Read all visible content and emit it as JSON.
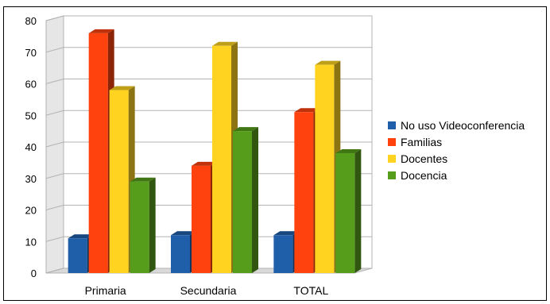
{
  "chart_data": {
    "type": "bar",
    "categories": [
      "Primaria",
      "Secundaria",
      "TOTAL"
    ],
    "series": [
      {
        "name": "No uso Videoconferencia",
        "color": "#1f5ea8",
        "values": [
          11,
          12,
          12
        ]
      },
      {
        "name": "Familias",
        "color": "#ff420e",
        "values": [
          76,
          34,
          51
        ]
      },
      {
        "name": "Docentes",
        "color": "#ffd320",
        "values": [
          58,
          72,
          66
        ]
      },
      {
        "name": "Docencia",
        "color": "#579d1c",
        "values": [
          29,
          45,
          38
        ]
      }
    ],
    "ylim": [
      0,
      80
    ],
    "yticks": [
      "0",
      "10",
      "20",
      "30",
      "40",
      "50",
      "60",
      "70",
      "80"
    ],
    "grid": true,
    "legend": "right",
    "style": "3d"
  }
}
